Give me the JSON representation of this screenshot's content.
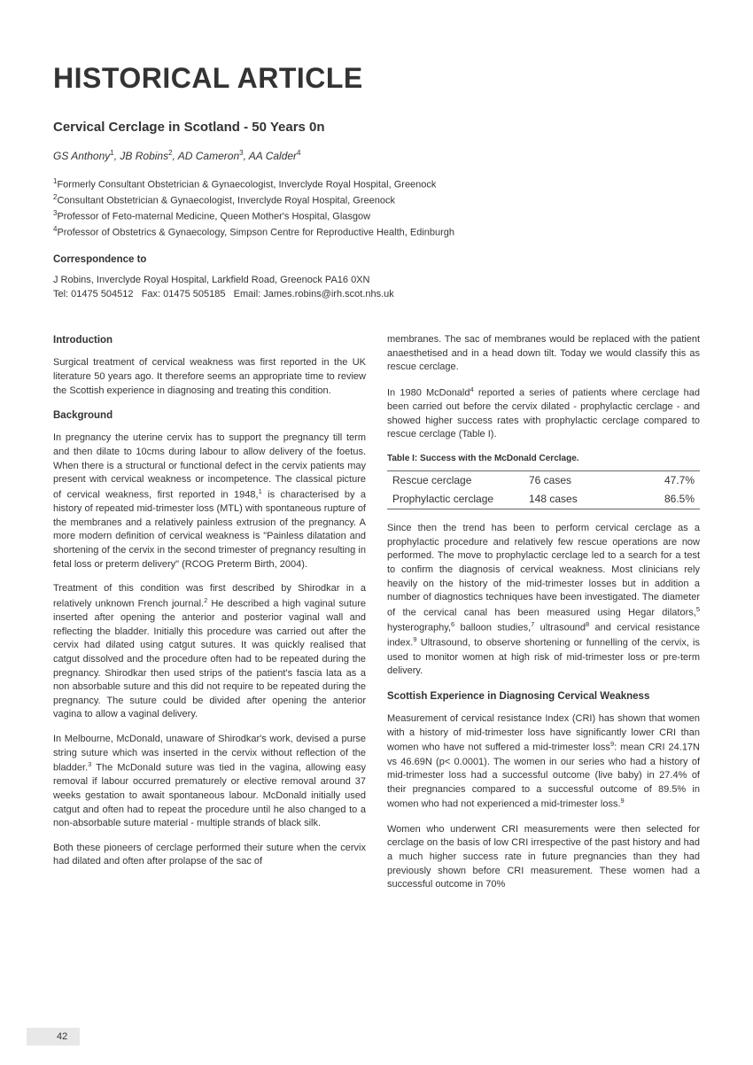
{
  "article_type": "HISTORICAL ARTICLE",
  "title": "Cervical Cerclage in Scotland - 50 Years 0n",
  "authors_html": "GS Anthony<sup>1</sup>, JB Robins<sup>2</sup>, AD Cameron<sup>3</sup>, AA Calder<sup>4</sup>",
  "affiliations": [
    "<sup>1</sup>Formerly Consultant Obstetrician & Gynaecologist, Inverclyde Royal Hospital, Greenock",
    "<sup>2</sup>Consultant Obstetrician & Gynaecologist, Inverclyde Royal Hospital, Greenock",
    "<sup>3</sup>Professor of Feto-maternal Medicine, Queen Mother's Hospital, Glasgow",
    "<sup>4</sup>Professor of Obstetrics & Gynaecology, Simpson Centre for Reproductive Health, Edinburgh"
  ],
  "correspondence_label": "Correspondence to",
  "correspondence_body": "J Robins, Inverclyde Royal Hospital, Larkfield Road, Greenock PA16 0XN<br>Tel: 01475 504512&nbsp;&nbsp;&nbsp;Fax: 01475 505185&nbsp;&nbsp;&nbsp;Email: James.robins@irh.scot.nhs.uk",
  "left_col": {
    "h1": "Introduction",
    "p1": "Surgical treatment of cervical weakness was first reported in the UK literature 50 years ago. It therefore seems an appropriate time to review the Scottish experience in diagnosing and treating this condition.",
    "h2": "Background",
    "p2": "In pregnancy the uterine cervix has to support the pregnancy till term and then dilate to 10cms during labour to allow delivery of the foetus. When there is a structural or functional defect in the cervix patients may present with cervical weakness or incompetence. The classical picture of cervical weakness, first reported in 1948,<sup>1</sup> is characterised by a history of repeated mid-trimester loss (MTL) with spontaneous rupture of the membranes and a relatively painless extrusion of the pregnancy. A more modern definition of cervical weakness is \"Painless dilatation and shortening of the cervix in the second trimester of pregnancy resulting in fetal loss or preterm delivery\" (RCOG Preterm Birth, 2004).",
    "p3": "Treatment of this condition was first described by Shirodkar in a relatively unknown French journal.<sup>2</sup> He described a high vaginal suture inserted after opening the anterior and posterior vaginal wall and reflecting the bladder. Initially this procedure was carried out after the cervix had dilated using catgut sutures. It was quickly realised that catgut dissolved and the procedure often had to be repeated during the pregnancy. Shirodkar then used strips of the patient's fascia lata as a non absorbable suture and this did not require to be repeated during the pregnancy. The suture could be divided after opening the anterior vagina to allow a vaginal delivery.",
    "p4": "In Melbourne, McDonald, unaware of Shirodkar's work, devised a purse string suture which was inserted in the cervix without reflection of the bladder.<sup>3</sup> The McDonald suture was tied in the vagina, allowing easy removal if labour occurred prematurely or elective removal around 37 weeks gestation to await spontaneous labour. McDonald initially used catgut and often had to repeat the procedure until he also changed to a non-absorbable suture material - multiple strands of black silk.",
    "p5": "Both these pioneers of cerclage performed their suture when the cervix had dilated and often after prolapse of the sac of"
  },
  "right_col": {
    "p1": "membranes. The sac of membranes would be replaced with the patient anaesthetised and in a head down tilt. Today we would classify this as rescue cerclage.",
    "p2": "In 1980 McDonald<sup>4</sup> reported a series of patients where cerclage had been carried out before the cervix dilated - prophylactic cerclage - and showed higher success rates with prophylactic cerclage compared to rescue cerclage (Table I).",
    "table_caption": "Table I: Success with the McDonald Cerclage.",
    "table": {
      "rows": [
        {
          "c1": "Rescue cerclage",
          "c2": "76 cases",
          "c3": "47.7%"
        },
        {
          "c1": "Prophylactic cerclage",
          "c2": "148 cases",
          "c3": "86.5%"
        }
      ]
    },
    "p3": "Since then the trend has been to perform cervical cerclage as a prophylactic procedure and relatively few rescue operations are now performed. The move to prophylactic cerclage led to a search for a test to confirm the diagnosis of cervical weakness. Most clinicians rely heavily on the history of the mid-trimester losses but in addition a number of diagnostics techniques have been investigated. The diameter of the cervical canal has been measured using Hegar dilators,<sup>5</sup> hysterography,<sup>6</sup> balloon studies,<sup>7</sup> ultrasound<sup>8</sup> and cervical resistance index.<sup>9</sup> Ultrasound, to observe shortening or funnelling of the cervix, is used to monitor women at high risk of mid-trimester loss or pre-term delivery.",
    "h1": "Scottish Experience in Diagnosing Cervical Weakness",
    "p4": "Measurement of cervical resistance Index (CRI) has shown that women with a history of mid-trimester loss have significantly lower CRI than women who have not suffered a mid-trimester loss<sup>9</sup>: mean CRI 24.17N vs 46.69N (p&lt; 0.0001). The women in our series who had a history of mid-trimester loss had a successful outcome (live baby) in 27.4% of their pregnancies compared to a successful outcome of 89.5% in women who had not experienced a mid-trimester loss.<sup>9</sup>",
    "p5": "Women who underwent CRI measurements were then selected for cerclage on the basis of low CRI irrespective of the past history and had a much higher success rate in future pregnancies than they had previously shown before CRI measurement. These women had a successful outcome in 70%"
  },
  "page_number": "42"
}
